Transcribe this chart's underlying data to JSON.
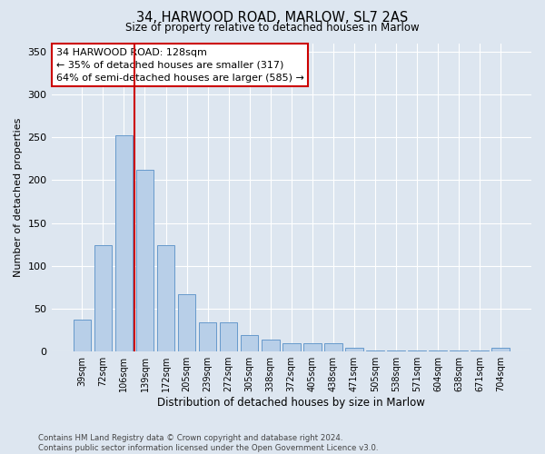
{
  "title1": "34, HARWOOD ROAD, MARLOW, SL7 2AS",
  "title2": "Size of property relative to detached houses in Marlow",
  "xlabel": "Distribution of detached houses by size in Marlow",
  "ylabel": "Number of detached properties",
  "categories": [
    "39sqm",
    "72sqm",
    "106sqm",
    "139sqm",
    "172sqm",
    "205sqm",
    "239sqm",
    "272sqm",
    "305sqm",
    "338sqm",
    "372sqm",
    "405sqm",
    "438sqm",
    "471sqm",
    "505sqm",
    "538sqm",
    "571sqm",
    "604sqm",
    "638sqm",
    "671sqm",
    "704sqm"
  ],
  "values": [
    37,
    124,
    252,
    212,
    124,
    67,
    34,
    34,
    19,
    14,
    10,
    10,
    10,
    4,
    1,
    1,
    1,
    1,
    1,
    1,
    4
  ],
  "bar_color": "#b8cfe8",
  "bar_edge_color": "#6699cc",
  "vline_color": "#cc0000",
  "annotation_text": "34 HARWOOD ROAD: 128sqm\n← 35% of detached houses are smaller (317)\n64% of semi-detached houses are larger (585) →",
  "annotation_box_color": "#ffffff",
  "annotation_box_edge": "#cc0000",
  "background_color": "#dde6f0",
  "ylim": [
    0,
    360
  ],
  "yticks": [
    0,
    50,
    100,
    150,
    200,
    250,
    300,
    350
  ],
  "footer": "Contains HM Land Registry data © Crown copyright and database right 2024.\nContains public sector information licensed under the Open Government Licence v3.0."
}
